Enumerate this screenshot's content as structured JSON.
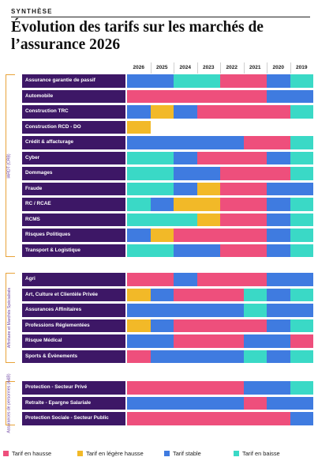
{
  "kicker": "SYNTHÈSE",
  "title": "Évolution des tarifs sur les marchés de l’assurance 2026",
  "years": [
    "2026",
    "2025",
    "2024",
    "2023",
    "2022",
    "2021",
    "2020",
    "2019"
  ],
  "colors": {
    "H": "#ee4f7c",
    "L": "#f2b928",
    "S": "#3f7be0",
    "B": "#3ad9c6",
    "label_bg": "#3d1766"
  },
  "legend": [
    {
      "key": "H",
      "label": "Tarif en hausse"
    },
    {
      "key": "L",
      "label": "Tarif en légère hausse"
    },
    {
      "key": "S",
      "label": "Tarif stable"
    },
    {
      "key": "B",
      "label": "Tarif en baisse"
    }
  ],
  "groups": [
    {
      "label": "IARDT (CRB)",
      "rows": [
        {
          "label": "Assurance garantie de passif",
          "cells": [
            "S",
            "S",
            "B",
            "B",
            "H",
            "H",
            "S",
            "B"
          ]
        },
        {
          "label": "Automobile",
          "cells": [
            "H",
            "H",
            "H",
            "H",
            "H",
            "H",
            "S",
            "S"
          ]
        },
        {
          "label": "Construction TRC",
          "cells": [
            "S",
            "L",
            "S",
            "H",
            "H",
            "H",
            "H",
            "B"
          ]
        },
        {
          "label": "Construction RCD - DO",
          "cells": [
            "L",
            "",
            "",
            "",
            "",
            "",
            "",
            ""
          ]
        },
        {
          "label": "Crédit & affacturage",
          "cells": [
            "S",
            "S",
            "S",
            "S",
            "S",
            "H",
            "H",
            "B"
          ]
        },
        {
          "label": "Cyber",
          "cells": [
            "B",
            "B",
            "S",
            "H",
            "H",
            "H",
            "S",
            "B"
          ]
        },
        {
          "label": "Dommages",
          "cells": [
            "B",
            "B",
            "S",
            "S",
            "H",
            "H",
            "H",
            "B"
          ]
        },
        {
          "label": "Fraude",
          "cells": [
            "B",
            "B",
            "S",
            "L",
            "H",
            "H",
            "S",
            "S"
          ]
        },
        {
          "label": "RC / RCAE",
          "cells": [
            "B",
            "S",
            "L",
            "L",
            "H",
            "H",
            "S",
            "B"
          ]
        },
        {
          "label": "RCMS",
          "cells": [
            "B",
            "B",
            "B",
            "L",
            "H",
            "H",
            "S",
            "B"
          ]
        },
        {
          "label": "Risques Politiques",
          "cells": [
            "S",
            "L",
            "H",
            "H",
            "H",
            "H",
            "S",
            "B"
          ]
        },
        {
          "label": "Transport & Logistique",
          "cells": [
            "B",
            "B",
            "S",
            "S",
            "H",
            "H",
            "S",
            "B"
          ]
        }
      ]
    },
    {
      "label": "Affinitaire et Marchés Spécialisés",
      "rows": [
        {
          "label": "Agri",
          "cells": [
            "H",
            "H",
            "S",
            "H",
            "H",
            "H",
            "S",
            "S"
          ]
        },
        {
          "label": "Art, Culture et Clientèle Privée",
          "cells": [
            "L",
            "S",
            "H",
            "H",
            "H",
            "B",
            "S",
            "B"
          ]
        },
        {
          "label": "Assurances Affinitaires",
          "cells": [
            "S",
            "S",
            "S",
            "S",
            "S",
            "B",
            "S",
            "S"
          ]
        },
        {
          "label": "Professions Réglementées",
          "cells": [
            "L",
            "S",
            "H",
            "H",
            "H",
            "H",
            "S",
            "B"
          ]
        },
        {
          "label": "Risque Médical",
          "cells": [
            "S",
            "S",
            "H",
            "H",
            "H",
            "S",
            "S",
            "H"
          ]
        },
        {
          "label": "Sports & Évènements",
          "cells": [
            "H",
            "S",
            "S",
            "S",
            "S",
            "B",
            "S",
            "B"
          ]
        }
      ]
    },
    {
      "label": "Assurances de personnes (A&B)",
      "rows": [
        {
          "label": "Protection - Secteur Privé",
          "cells": [
            "H",
            "H",
            "H",
            "H",
            "H",
            "S",
            "S",
            "B"
          ]
        },
        {
          "label": "Retraite - Epargne Salariale",
          "cells": [
            "S",
            "S",
            "S",
            "S",
            "S",
            "H",
            "S",
            "S"
          ]
        },
        {
          "label": "Protection Sociale - Secteur Public",
          "cells": [
            "H",
            "H",
            "H",
            "H",
            "H",
            "H",
            "H",
            "S"
          ]
        }
      ]
    }
  ]
}
